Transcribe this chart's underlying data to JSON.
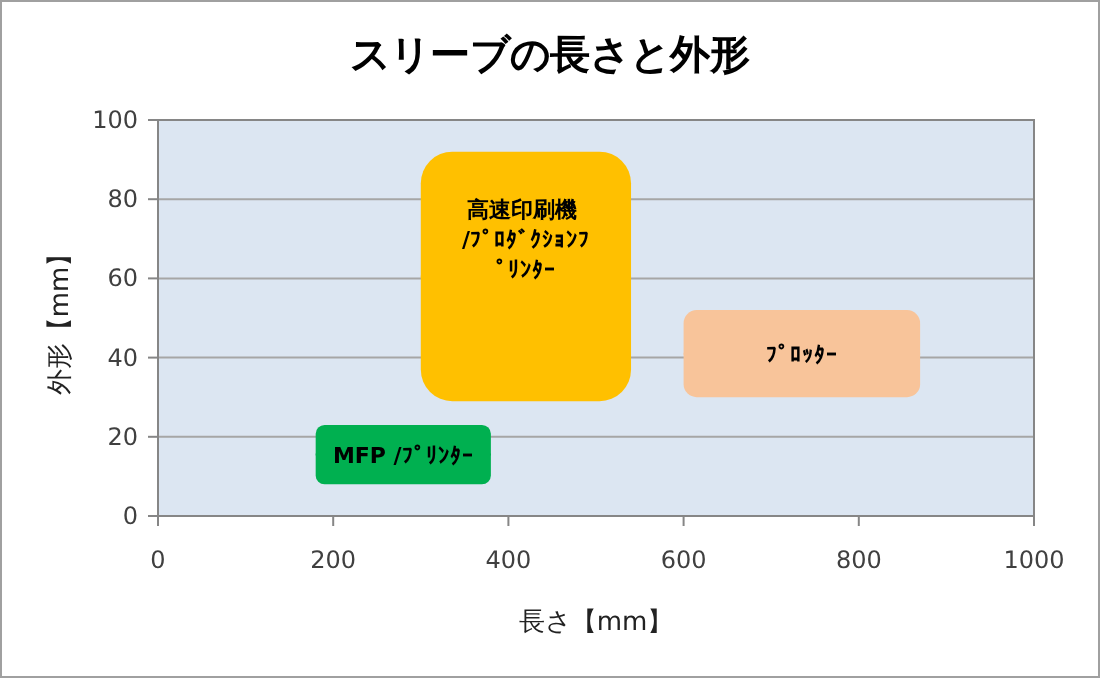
{
  "chart_data": {
    "type": "bar",
    "title": "スリーブの長さと外形",
    "xlabel": "長さ【mm】",
    "ylabel": "外形【mm】",
    "xlim": [
      0,
      1000
    ],
    "xticks": [
      0,
      200,
      400,
      600,
      800,
      1000
    ],
    "ylim": [
      0,
      100
    ],
    "yticks": [
      0,
      20,
      40,
      60,
      80,
      100
    ],
    "grid": "y",
    "series": [
      {
        "name": "MFP /ﾌﾟﾘﾝﾀｰ",
        "color": "#00b050",
        "x": [
          280
        ],
        "base": [
          8
        ],
        "values": [
          15
        ],
        "xerrors": [
          100
        ]
      },
      {
        "name": "高速印刷機 /ﾌﾟﾛﾀﾞｸｼｮﾝﾌﾟﾘﾝﾀｰ",
        "color": "#ffc000",
        "x": [
          420
        ],
        "base": [
          29
        ],
        "values": [
          63
        ],
        "xerrors": [
          120
        ]
      },
      {
        "name": "ﾌﾟﾛｯﾀｰ",
        "color": "#f8c49a",
        "x": [
          735
        ],
        "base": [
          30
        ],
        "values": [
          22
        ],
        "xerrors": [
          135
        ]
      }
    ]
  }
}
